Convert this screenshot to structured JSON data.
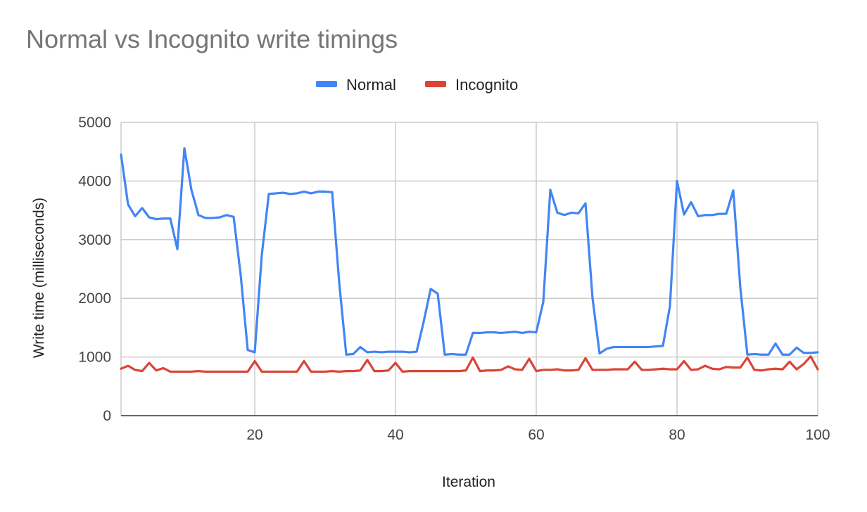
{
  "chart_data": {
    "type": "line",
    "title": "Normal vs Incognito write timings",
    "xlabel": "Iteration",
    "ylabel": "Write time (milliseconds)",
    "xlim": [
      1,
      100
    ],
    "ylim": [
      0,
      5000
    ],
    "xticks": [
      20,
      40,
      60,
      80,
      100
    ],
    "yticks": [
      0,
      1000,
      2000,
      3000,
      4000,
      5000
    ],
    "xtick_labels": [
      "20",
      "40",
      "60",
      "80",
      "100"
    ],
    "ytick_labels": [
      "0",
      "1000",
      "2000",
      "3000",
      "4000",
      "5000"
    ],
    "grid": true,
    "legend_position": "top",
    "x": [
      1,
      2,
      3,
      4,
      5,
      6,
      7,
      8,
      9,
      10,
      11,
      12,
      13,
      14,
      15,
      16,
      17,
      18,
      19,
      20,
      21,
      22,
      23,
      24,
      25,
      26,
      27,
      28,
      29,
      30,
      31,
      32,
      33,
      34,
      35,
      36,
      37,
      38,
      39,
      40,
      41,
      42,
      43,
      44,
      45,
      46,
      47,
      48,
      49,
      50,
      51,
      52,
      53,
      54,
      55,
      56,
      57,
      58,
      59,
      60,
      61,
      62,
      63,
      64,
      65,
      66,
      67,
      68,
      69,
      70,
      71,
      72,
      73,
      74,
      75,
      76,
      77,
      78,
      79,
      80,
      81,
      82,
      83,
      84,
      85,
      86,
      87,
      88,
      89,
      90,
      91,
      92,
      93,
      94,
      95,
      96,
      97,
      98,
      99,
      100
    ],
    "series": [
      {
        "name": "Normal",
        "color": "#4285f4",
        "values": [
          4450,
          3600,
          3400,
          3540,
          3380,
          3350,
          3360,
          3360,
          2840,
          4560,
          3850,
          3420,
          3370,
          3370,
          3380,
          3420,
          3390,
          2400,
          1120,
          1080,
          2740,
          3780,
          3790,
          3800,
          3780,
          3790,
          3820,
          3790,
          3820,
          3820,
          3810,
          2270,
          1040,
          1050,
          1170,
          1080,
          1090,
          1080,
          1090,
          1090,
          1090,
          1080,
          1090,
          1600,
          2160,
          2080,
          1040,
          1050,
          1040,
          1040,
          1410,
          1410,
          1420,
          1420,
          1410,
          1420,
          1430,
          1410,
          1430,
          1420,
          1940,
          3850,
          3460,
          3420,
          3460,
          3450,
          3620,
          2000,
          1060,
          1140,
          1170,
          1170,
          1170,
          1170,
          1170,
          1170,
          1180,
          1190,
          1870,
          4000,
          3430,
          3640,
          3400,
          3420,
          3420,
          3440,
          3440,
          3840,
          2180,
          1040,
          1050,
          1040,
          1040,
          1230,
          1040,
          1040,
          1160,
          1070,
          1070,
          1080
        ],
        "values_last": 1080
      },
      {
        "name": "Incognito",
        "color": "#db4437",
        "values": [
          800,
          850,
          780,
          760,
          900,
          770,
          810,
          750,
          750,
          750,
          750,
          760,
          750,
          750,
          750,
          750,
          750,
          750,
          750,
          930,
          750,
          750,
          750,
          750,
          750,
          750,
          930,
          750,
          750,
          750,
          760,
          750,
          760,
          760,
          770,
          950,
          760,
          760,
          770,
          900,
          750,
          760,
          760,
          760,
          760,
          760,
          760,
          760,
          760,
          770,
          990,
          760,
          770,
          770,
          780,
          840,
          790,
          780,
          970,
          760,
          780,
          780,
          790,
          770,
          770,
          780,
          980,
          780,
          780,
          780,
          790,
          790,
          790,
          920,
          780,
          780,
          790,
          800,
          790,
          790,
          930,
          780,
          790,
          850,
          800,
          790,
          830,
          820,
          820,
          990,
          780,
          770,
          790,
          800,
          790,
          920,
          790,
          880,
          1010,
          790
        ]
      }
    ]
  }
}
